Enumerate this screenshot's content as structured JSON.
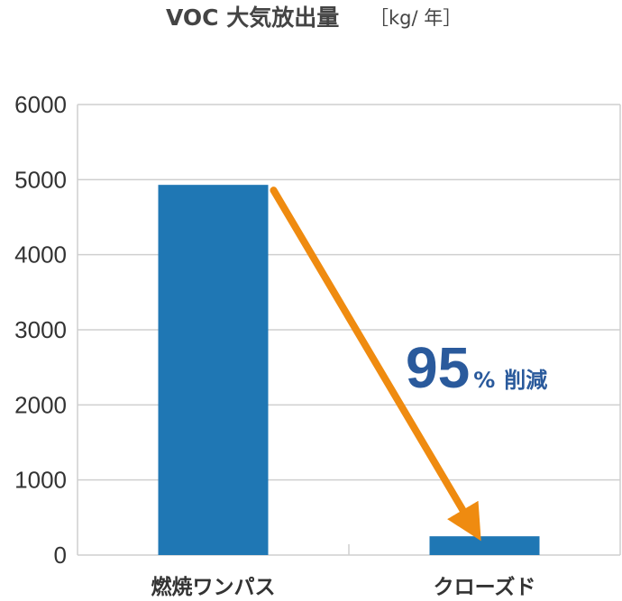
{
  "chart_data": {
    "type": "bar",
    "title": "VOC 大気放出量",
    "title_unit": "［kg/ 年］",
    "categories": [
      "燃焼ワンパス",
      "クローズド"
    ],
    "values": [
      4930,
      250
    ],
    "ylim": [
      0,
      6000
    ],
    "yticks": [
      "0",
      "1000",
      "2000",
      "3000",
      "4000",
      "5000",
      "6000"
    ],
    "grid": true,
    "annotation": {
      "value": "95",
      "unit": "%",
      "text": "削減"
    },
    "colors": {
      "bar": "#1f77b4",
      "arrow": "#ef8b10",
      "grid": "#cfcfcf",
      "annotation": "#2a5a9c"
    }
  }
}
